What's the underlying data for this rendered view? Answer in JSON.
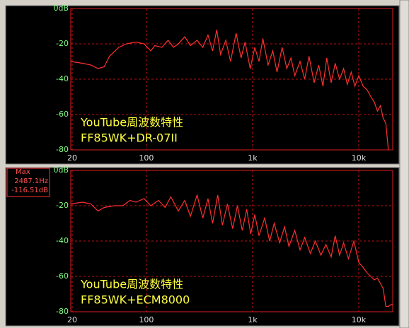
{
  "chart_data": [
    {
      "type": "line",
      "log_x": true,
      "grid": true,
      "annotations": [
        "YouTube周波数特性",
        "FF85WK+DR-07II"
      ],
      "xlim": [
        19.4,
        20900
      ],
      "xticks": [
        20,
        100,
        {
          "value": 1000,
          "label": "1k"
        },
        {
          "value": 10000,
          "label": "10k"
        }
      ],
      "ylim": [
        -80,
        0
      ],
      "yticks": [
        {
          "value": 0,
          "label": "0dB"
        },
        -20,
        -40,
        -60,
        -80
      ],
      "x": [
        19.4,
        25,
        30,
        35,
        40,
        45,
        55,
        65,
        80,
        95,
        110,
        120,
        140,
        160,
        180,
        200,
        230,
        260,
        300,
        340,
        380,
        420,
        460,
        500,
        560,
        620,
        700,
        780,
        850,
        950,
        1050,
        1150,
        1250,
        1400,
        1550,
        1700,
        1900,
        2100,
        2300,
        2500,
        2800,
        3100,
        3400,
        3800,
        4200,
        4600,
        5000,
        5500,
        6000,
        6600,
        7200,
        7800,
        8500,
        9200,
        10000,
        11000,
        12000,
        13000,
        14000,
        15000,
        16000,
        17000,
        18000,
        19000
      ],
      "series": [
        {
          "color": "#ff3030",
          "values": [
            -30,
            -31,
            -32,
            -34,
            -33,
            -27,
            -22,
            -20,
            -19,
            -20,
            -24,
            -21,
            -22,
            -18,
            -22,
            -20,
            -16,
            -21,
            -18,
            -22,
            -15,
            -24,
            -12,
            -26,
            -18,
            -30,
            -14,
            -28,
            -19,
            -34,
            -22,
            -30,
            -17,
            -32,
            -24,
            -36,
            -22,
            -34,
            -28,
            -38,
            -30,
            -40,
            -27,
            -42,
            -32,
            -44,
            -28,
            -42,
            -31,
            -40,
            -34,
            -43,
            -36,
            -44,
            -38,
            -44,
            -46,
            -50,
            -53,
            -58,
            -55,
            -62,
            -65,
            -80
          ]
        }
      ]
    },
    {
      "type": "line",
      "log_x": true,
      "grid": true,
      "annotations": [
        "YouTube周波数特性",
        "FF85WK+ECM8000"
      ],
      "readout": [
        "Max",
        "2487.1Hz",
        "-116.51dB"
      ],
      "xlim": [
        19.4,
        20900
      ],
      "xticks": [
        20,
        100,
        {
          "value": 1000,
          "label": "1k"
        },
        {
          "value": 10000,
          "label": "10k"
        }
      ],
      "ylim": [
        -80,
        0
      ],
      "yticks": [
        {
          "value": 0,
          "label": "0dB"
        },
        -20,
        -40,
        -60,
        -80
      ],
      "x": [
        19.4,
        25,
        30,
        35,
        40,
        50,
        60,
        70,
        80,
        95,
        110,
        130,
        150,
        170,
        200,
        230,
        260,
        300,
        340,
        380,
        420,
        470,
        520,
        580,
        650,
        720,
        800,
        880,
        960,
        1050,
        1150,
        1300,
        1450,
        1600,
        1800,
        2000,
        2200,
        2500,
        2800,
        3100,
        3500,
        3900,
        4400,
        4900,
        5500,
        6000,
        6600,
        7200,
        8000,
        9000,
        10000,
        11000,
        12000,
        13000,
        14000,
        15000,
        16000,
        17000,
        18000,
        19000,
        20000,
        20900
      ],
      "series": [
        {
          "color": "#ff3030",
          "values": [
            -19,
            -18,
            -19,
            -23,
            -21,
            -20,
            -20,
            -17,
            -18,
            -16,
            -20,
            -17,
            -21,
            -15,
            -23,
            -17,
            -26,
            -14,
            -27,
            -16,
            -30,
            -14,
            -31,
            -19,
            -33,
            -20,
            -34,
            -22,
            -36,
            -25,
            -37,
            -27,
            -40,
            -30,
            -41,
            -32,
            -43,
            -34,
            -45,
            -38,
            -47,
            -40,
            -48,
            -42,
            -49,
            -37,
            -48,
            -41,
            -50,
            -40,
            -52,
            -55,
            -58,
            -60,
            -62,
            -61,
            -64,
            -67,
            -77,
            -77,
            -76,
            -76
          ]
        }
      ]
    }
  ]
}
